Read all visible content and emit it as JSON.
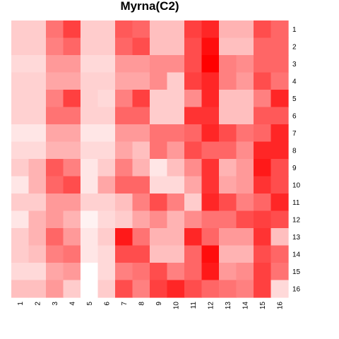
{
  "chart_data": {
    "type": "heatmap",
    "title": "Myrna(C2)",
    "xlabel": "",
    "ylabel": "",
    "x_labels": [
      "1",
      "2",
      "3",
      "4",
      "5",
      "6",
      "7",
      "8",
      "9",
      "10",
      "11",
      "12",
      "13",
      "14",
      "15",
      "16"
    ],
    "y_labels": [
      "1",
      "2",
      "3",
      "4",
      "5",
      "6",
      "7",
      "8",
      "9",
      "10",
      "11",
      "12",
      "13",
      "14",
      "15",
      "16"
    ],
    "color_scale": {
      "low": "#ffffff",
      "high": "#ff0000"
    },
    "value_range": [
      0,
      1
    ],
    "values": [
      [
        0.2,
        0.2,
        0.55,
        0.75,
        0.2,
        0.2,
        0.65,
        0.6,
        0.25,
        0.25,
        0.75,
        0.85,
        0.3,
        0.3,
        0.7,
        0.6
      ],
      [
        0.2,
        0.2,
        0.5,
        0.6,
        0.2,
        0.2,
        0.6,
        0.7,
        0.25,
        0.25,
        0.7,
        0.95,
        0.25,
        0.25,
        0.6,
        0.6
      ],
      [
        0.15,
        0.15,
        0.4,
        0.4,
        0.15,
        0.15,
        0.4,
        0.4,
        0.45,
        0.45,
        0.7,
        1.0,
        0.5,
        0.45,
        0.6,
        0.6
      ],
      [
        0.18,
        0.18,
        0.35,
        0.35,
        0.18,
        0.18,
        0.35,
        0.35,
        0.45,
        0.2,
        0.75,
        0.85,
        0.5,
        0.4,
        0.7,
        0.55
      ],
      [
        0.18,
        0.18,
        0.5,
        0.75,
        0.18,
        0.15,
        0.5,
        0.75,
        0.2,
        0.2,
        0.45,
        0.85,
        0.25,
        0.25,
        0.5,
        0.85
      ],
      [
        0.18,
        0.18,
        0.55,
        0.55,
        0.18,
        0.18,
        0.6,
        0.6,
        0.2,
        0.2,
        0.8,
        0.8,
        0.25,
        0.25,
        0.65,
        0.65
      ],
      [
        0.1,
        0.1,
        0.35,
        0.35,
        0.1,
        0.1,
        0.4,
        0.4,
        0.55,
        0.55,
        0.6,
        0.85,
        0.7,
        0.55,
        0.6,
        0.85
      ],
      [
        0.15,
        0.15,
        0.3,
        0.3,
        0.15,
        0.15,
        0.35,
        0.25,
        0.55,
        0.4,
        0.7,
        0.6,
        0.6,
        0.45,
        0.85,
        0.85
      ],
      [
        0.2,
        0.3,
        0.65,
        0.5,
        0.1,
        0.2,
        0.5,
        0.3,
        0.1,
        0.25,
        0.45,
        0.8,
        0.3,
        0.4,
        0.9,
        0.7
      ],
      [
        0.1,
        0.3,
        0.6,
        0.7,
        0.1,
        0.35,
        0.6,
        0.6,
        0.15,
        0.15,
        0.35,
        0.8,
        0.35,
        0.4,
        0.8,
        0.7
      ],
      [
        0.2,
        0.2,
        0.4,
        0.4,
        0.18,
        0.18,
        0.25,
        0.5,
        0.7,
        0.5,
        0.2,
        0.85,
        0.7,
        0.5,
        0.6,
        0.85
      ],
      [
        0.1,
        0.3,
        0.4,
        0.3,
        0.05,
        0.15,
        0.2,
        0.35,
        0.45,
        0.3,
        0.45,
        0.55,
        0.55,
        0.7,
        0.75,
        0.7
      ],
      [
        0.2,
        0.3,
        0.6,
        0.4,
        0.1,
        0.2,
        0.9,
        0.55,
        0.3,
        0.3,
        0.85,
        0.6,
        0.4,
        0.4,
        0.8,
        0.25
      ],
      [
        0.2,
        0.25,
        0.5,
        0.55,
        0.1,
        0.15,
        0.7,
        0.7,
        0.25,
        0.25,
        0.6,
        0.95,
        0.3,
        0.3,
        0.7,
        0.6
      ],
      [
        0.15,
        0.15,
        0.35,
        0.4,
        0.0,
        0.15,
        0.5,
        0.55,
        0.7,
        0.5,
        0.6,
        0.9,
        0.4,
        0.45,
        0.75,
        0.55
      ],
      [
        0.25,
        0.25,
        0.4,
        0.2,
        0.0,
        0.2,
        0.7,
        0.5,
        0.75,
        0.85,
        0.7,
        0.6,
        0.55,
        0.5,
        0.75,
        0.15
      ]
    ]
  }
}
